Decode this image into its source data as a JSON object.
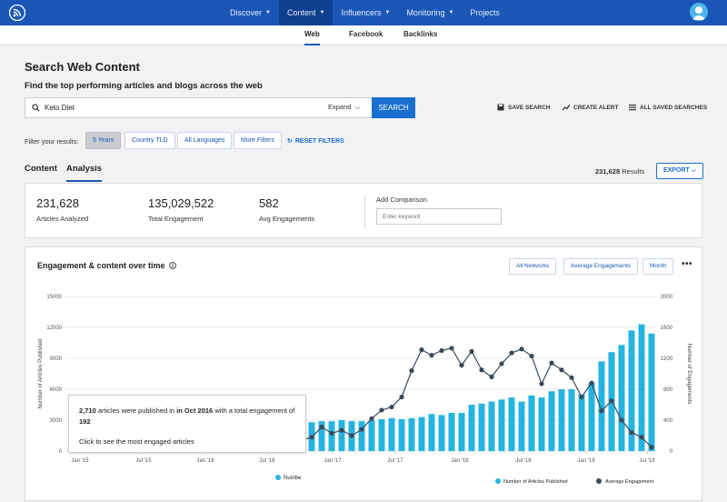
{
  "topnav": {
    "items": [
      {
        "label": "Discover",
        "chevron": true
      },
      {
        "label": "Content",
        "chevron": true,
        "active": true
      },
      {
        "label": "Influencers",
        "chevron": true
      },
      {
        "label": "Monitoring",
        "chevron": true
      },
      {
        "label": "Projects",
        "chevron": false
      }
    ],
    "brand_color": "#1a56b5"
  },
  "subnav": {
    "tabs": [
      "Web",
      "Facebook",
      "Backlinks"
    ],
    "active": "Web"
  },
  "page": {
    "title": "Search Web Content",
    "subtitle": "Find the top performing articles and blogs across the web"
  },
  "search": {
    "value": "Keto Diet",
    "expand_label": "Expand",
    "button_label": "SEARCH",
    "actions": {
      "save": "SAVE SEARCH",
      "alert": "CREATE ALERT",
      "all_saved": "ALL SAVED SEARCHES"
    }
  },
  "filters": {
    "label": "Filter your results:",
    "buttons": [
      "5 Years",
      "Country TLD",
      "All Languages",
      "More Filters"
    ],
    "selected": "5 Years",
    "reset_label": "RESET FILTERS"
  },
  "content_tabs": {
    "tabs": [
      "Content",
      "Analysis"
    ],
    "active": "Analysis"
  },
  "results": {
    "count": "231,628",
    "suffix": "Results",
    "export_label": "EXPORT"
  },
  "stats": {
    "items": [
      {
        "value": "231,628",
        "label": "Articles Analyzed"
      },
      {
        "value": "135,029,522",
        "label": "Total Engagement"
      },
      {
        "value": "582",
        "label": "Avg Engagements"
      }
    ],
    "comparison_label": "Add Comparison",
    "comparison_placeholder": "Enter keyword"
  },
  "chart_panel": {
    "title": "Engagement & content over time",
    "buttons": [
      "All Networks",
      "Average Engagements",
      "Month"
    ],
    "more": "•••",
    "tooltip": {
      "count": "2,710",
      "text1": "articles were published in",
      "period": "in Oct 2016",
      "text2": "with a total engagement of",
      "engagement": "192",
      "link": "Click to see the most engaged articles"
    },
    "legend_truncated": "Numbe"
  },
  "chart_data": {
    "type": "bar",
    "ylabel": "Number of Articles Published",
    "y2label": "Number of Engagements",
    "ylim": [
      0,
      15000
    ],
    "y2lim": [
      0,
      2000
    ],
    "yticks": [
      "0",
      "3000",
      "6000",
      "9000",
      "12000",
      "15000"
    ],
    "y2ticks": [
      "0",
      "400",
      "800",
      "1200",
      "1600",
      "2000"
    ],
    "xticks": [
      "Jan '15",
      "Jul '15",
      "Jan '16",
      "Jul '16",
      "Jan '17",
      "Jul '17",
      "Jan '18",
      "Jul '18",
      "Jan '19",
      "Jul '19"
    ],
    "colors": {
      "bars": "#25b4e0",
      "line": "#3a4a5a"
    },
    "series": [
      {
        "name": "Number of Articles Published",
        "kind": "bar",
        "values": [
          2700,
          2800,
          2900,
          2900,
          3000,
          2900,
          2900,
          3000,
          3100,
          3200,
          3100,
          3200,
          3300,
          3600,
          3500,
          3700,
          3700,
          4500,
          4600,
          4800,
          5000,
          5200,
          4800,
          5400,
          5200,
          5800,
          6000,
          6000,
          5500,
          6600,
          8700,
          9600,
          10300,
          11700,
          12300,
          11400
        ]
      },
      {
        "name": "Average Engagement",
        "kind": "line",
        "values": [
          140,
          180,
          310,
          230,
          270,
          200,
          280,
          420,
          530,
          570,
          700,
          1040,
          1310,
          1240,
          1300,
          1330,
          1110,
          1290,
          1050,
          960,
          1130,
          1270,
          1320,
          1230,
          870,
          1140,
          1050,
          950,
          700,
          880,
          520,
          650,
          400,
          240,
          180,
          50
        ]
      }
    ],
    "legend_position": "bottom-right"
  }
}
